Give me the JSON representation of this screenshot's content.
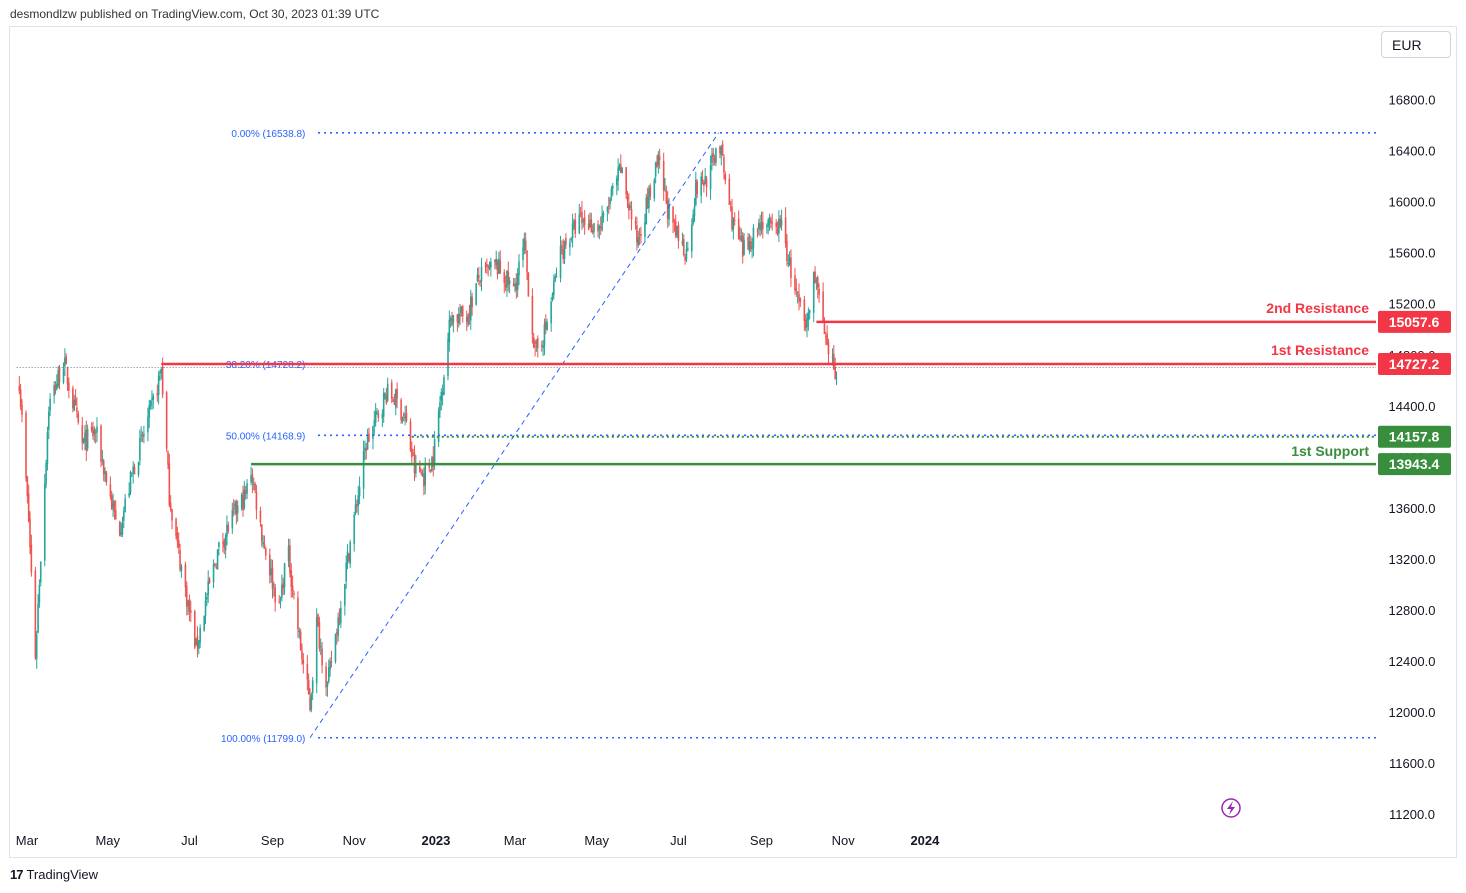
{
  "header": {
    "text": "desmondlzw published on TradingView.com, Oct 30, 2023 01:39 UTC"
  },
  "currency": "EUR",
  "footer": {
    "logo": "17",
    "brand": "TradingView"
  },
  "colors": {
    "up": "#26a69a",
    "down": "#ef5350",
    "resistance": "#f23645",
    "support": "#388e3c",
    "fib": "#2962ff"
  },
  "chart_data": {
    "type": "candlestick",
    "title": "",
    "y_ticks": [
      11200,
      11600,
      12000,
      12400,
      12800,
      13200,
      13600,
      14000,
      14400,
      14800,
      15200,
      15600,
      16000,
      16400,
      16800
    ],
    "y_tick_labels": [
      "11200.0",
      "11600.0",
      "12000.0",
      "12400.0",
      "12800.0",
      "13200.0",
      "13600.0",
      "14000.0",
      "14400.0",
      "14800.0",
      "15200.0",
      "15600.0",
      "16000.0",
      "16400.0",
      "16800.0"
    ],
    "ylim": [
      11100,
      17100
    ],
    "x_ticks": [
      {
        "label": "Mar",
        "date": "2022-03-01",
        "bold": false
      },
      {
        "label": "May",
        "date": "2022-05-01",
        "bold": false
      },
      {
        "label": "Jul",
        "date": "2022-07-01",
        "bold": false
      },
      {
        "label": "Sep",
        "date": "2022-09-01",
        "bold": false
      },
      {
        "label": "Nov",
        "date": "2022-11-01",
        "bold": false
      },
      {
        "label": "2023",
        "date": "2023-01-01",
        "bold": true
      },
      {
        "label": "Mar",
        "date": "2023-03-01",
        "bold": false
      },
      {
        "label": "May",
        "date": "2023-05-01",
        "bold": false
      },
      {
        "label": "Jul",
        "date": "2023-07-01",
        "bold": false
      },
      {
        "label": "Sep",
        "date": "2023-09-01",
        "bold": false
      },
      {
        "label": "Nov",
        "date": "2023-11-01",
        "bold": false
      },
      {
        "label": "2024",
        "date": "2024-01-01",
        "bold": true
      }
    ],
    "price_path": [
      [
        "2022-02-24",
        14600
      ],
      [
        "2022-03-03",
        13500
      ],
      [
        "2022-03-08",
        12450
      ],
      [
        "2022-03-18",
        14400
      ],
      [
        "2022-03-29",
        14750
      ],
      [
        "2022-04-12",
        14100
      ],
      [
        "2022-04-22",
        14200
      ],
      [
        "2022-05-09",
        13400
      ],
      [
        "2022-05-20",
        13900
      ],
      [
        "2022-06-06",
        14500
      ],
      [
        "2022-06-10",
        14700
      ],
      [
        "2022-06-16",
        13700
      ],
      [
        "2022-06-22",
        13300
      ],
      [
        "2022-07-06",
        12500
      ],
      [
        "2022-07-15",
        12950
      ],
      [
        "2022-07-22",
        13250
      ],
      [
        "2022-08-01",
        13500
      ],
      [
        "2022-08-12",
        13700
      ],
      [
        "2022-08-16",
        13900
      ],
      [
        "2022-08-24",
        13400
      ],
      [
        "2022-09-06",
        12800
      ],
      [
        "2022-09-12",
        13300
      ],
      [
        "2022-09-22",
        12500
      ],
      [
        "2022-09-29",
        12050
      ],
      [
        "2022-10-04",
        12700
      ],
      [
        "2022-10-12",
        12200
      ],
      [
        "2022-10-27",
        13200
      ],
      [
        "2022-11-10",
        14100
      ],
      [
        "2022-11-25",
        14500
      ],
      [
        "2022-12-02",
        14450
      ],
      [
        "2022-12-09",
        14300
      ],
      [
        "2022-12-16",
        13900
      ],
      [
        "2022-12-23",
        13850
      ],
      [
        "2022-12-30",
        14000
      ],
      [
        "2023-01-12",
        15100
      ],
      [
        "2023-01-24",
        15100
      ],
      [
        "2023-02-02",
        15400
      ],
      [
        "2023-02-15",
        15500
      ],
      [
        "2023-02-28",
        15300
      ],
      [
        "2023-03-08",
        15650
      ],
      [
        "2023-03-16",
        14800
      ],
      [
        "2023-03-24",
        15000
      ],
      [
        "2023-04-04",
        15600
      ],
      [
        "2023-04-18",
        15850
      ],
      [
        "2023-05-04",
        15800
      ],
      [
        "2023-05-19",
        16250
      ],
      [
        "2023-05-31",
        15700
      ],
      [
        "2023-06-16",
        16300
      ],
      [
        "2023-06-26",
        15800
      ],
      [
        "2023-07-07",
        15600
      ],
      [
        "2023-07-14",
        16100
      ],
      [
        "2023-07-24",
        16200
      ],
      [
        "2023-07-31",
        16500
      ],
      [
        "2023-08-09",
        15900
      ],
      [
        "2023-08-18",
        15600
      ],
      [
        "2023-09-01",
        15850
      ],
      [
        "2023-09-11",
        15750
      ],
      [
        "2023-09-15",
        15850
      ],
      [
        "2023-09-26",
        15300
      ],
      [
        "2023-10-04",
        15000
      ],
      [
        "2023-10-11",
        15450
      ],
      [
        "2023-10-20",
        14800
      ],
      [
        "2023-10-27",
        14650
      ]
    ],
    "levels": [
      {
        "name": "2nd Resistance",
        "value": 15057.6,
        "value_label": "15057.6",
        "kind": "resistance",
        "from": "2023-10-12"
      },
      {
        "name": "1st Resistance",
        "value": 14727.2,
        "value_label": "14727.2",
        "kind": "resistance",
        "from": "2022-06-10"
      },
      {
        "name": "",
        "value": 14157.8,
        "value_label": "14157.8",
        "kind": "support-dotted",
        "from": "2022-12-14"
      },
      {
        "name": "1st Support",
        "value": 13943.4,
        "value_label": "13943.4",
        "kind": "support",
        "from": "2022-08-16"
      }
    ],
    "fibonacci": {
      "start_date": "2022-10-03",
      "line_start_date": "2022-10-05",
      "end_date": "2023-10-30",
      "trend_from": [
        "2022-09-29",
        11799.0
      ],
      "trend_to": [
        "2023-07-31",
        16538.8
      ],
      "levels": [
        {
          "label": "0.00% (16538.8)",
          "value": 16538.8,
          "line": true
        },
        {
          "label": "38.20% (14728.2)",
          "value": 14728.2,
          "line": false
        },
        {
          "label": "50.00% (14168.9)",
          "value": 14168.9,
          "line": true
        },
        {
          "label": "100.00% (11799.0)",
          "value": 11799.0,
          "line": true
        }
      ]
    },
    "last_price": 14700,
    "last_price_start": "2022-02-22"
  }
}
